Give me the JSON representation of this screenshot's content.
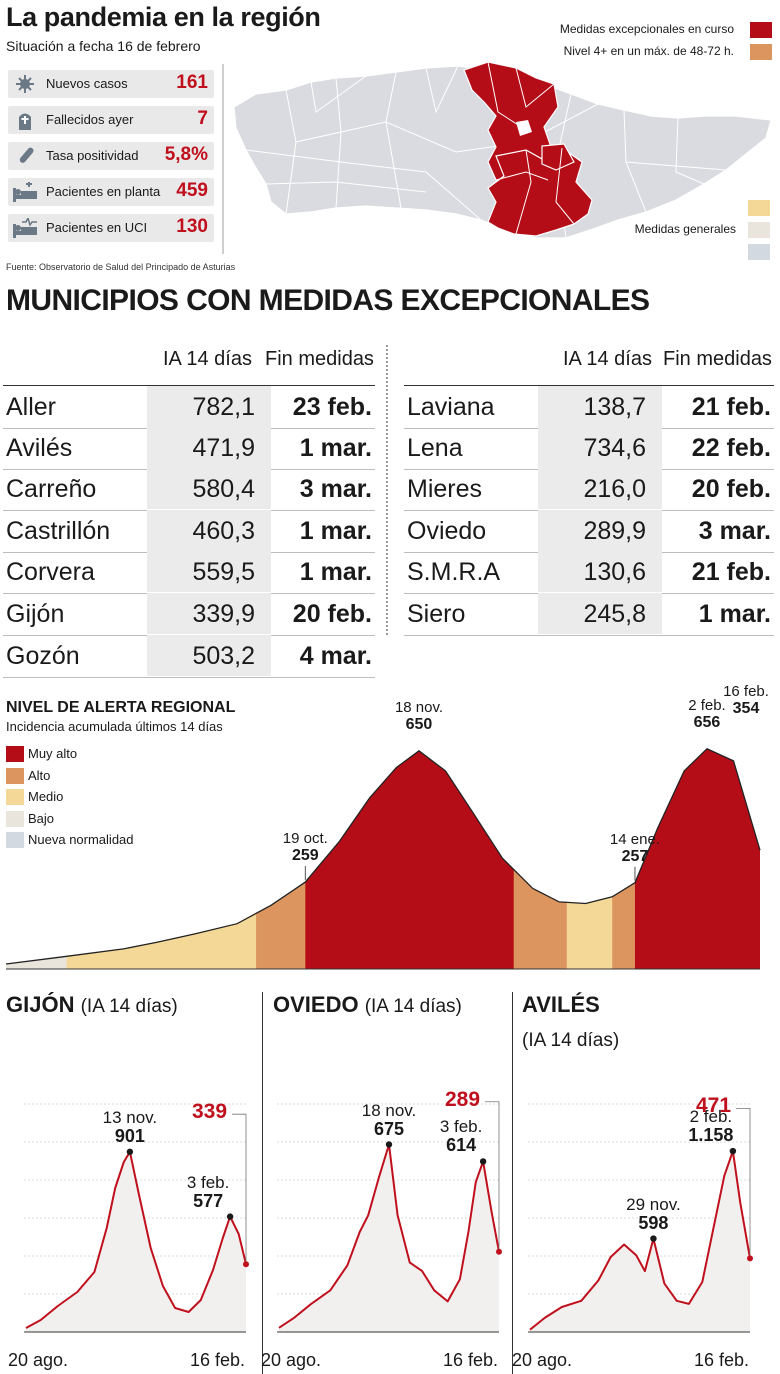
{
  "header": {
    "title": "La pandemia en la región",
    "subtitle": "Situación a fecha 16 de febrero"
  },
  "stats": [
    {
      "label": "Nuevos casos",
      "value": "161",
      "icon": "virus-icon"
    },
    {
      "label": "Fallecidos ayer",
      "value": "7",
      "icon": "tombstone-icon"
    },
    {
      "label": "Tasa positividad",
      "value": "5,8%",
      "icon": "test-tube-icon"
    },
    {
      "label": "Pacientes en planta",
      "value": "459",
      "icon": "hospital-bed-icon"
    },
    {
      "label": "Pacientes en UCI",
      "value": "130",
      "icon": "icu-bed-icon"
    }
  ],
  "source": "Fuente: Observatorio de Salud del Principado de Asturias",
  "map_legend": {
    "excepcionales": "Medidas excepcionales en curso",
    "nivel4": "Nivel 4+ en un máx. de 48-72 h.",
    "generales": "Medidas generales",
    "colors": {
      "excepcionales": "#b50d17",
      "nivel4": "#dc955f",
      "medio": "#f4d898",
      "bajo": "#e9e5dc",
      "normal": "#d3d9e1",
      "map": "#d9dbe0"
    }
  },
  "table": {
    "title": "MUNICIPIOS CON MEDIDAS EXCEPCIONALES",
    "col_ia": "IA 14 días",
    "col_fin": "Fin medidas",
    "left": [
      {
        "municipio": "Aller",
        "ia": "782,1",
        "fin": "23 feb."
      },
      {
        "municipio": "Avilés",
        "ia": "471,9",
        "fin": "1 mar."
      },
      {
        "municipio": "Carreño",
        "ia": "580,4",
        "fin": "3 mar."
      },
      {
        "municipio": "Castrillón",
        "ia": "460,3",
        "fin": "1 mar."
      },
      {
        "municipio": "Corvera",
        "ia": "559,5",
        "fin": "1 mar."
      },
      {
        "municipio": "Gijón",
        "ia": "339,9",
        "fin": "20 feb."
      },
      {
        "municipio": "Gozón",
        "ia": "503,2",
        "fin": "4 mar."
      }
    ],
    "right": [
      {
        "municipio": "Laviana",
        "ia": "138,7",
        "fin": "21 feb."
      },
      {
        "municipio": "Lena",
        "ia": "734,6",
        "fin": "22 feb."
      },
      {
        "municipio": "Mieres",
        "ia": "216,0",
        "fin": "20 feb."
      },
      {
        "municipio": "Oviedo",
        "ia": "289,9",
        "fin": "3 mar."
      },
      {
        "municipio": "S.M.R.A",
        "ia": "130,6",
        "fin": "21 feb."
      },
      {
        "municipio": "Siero",
        "ia": "245,8",
        "fin": "1 mar."
      }
    ]
  },
  "chart_data": [
    {
      "type": "area",
      "title": "NIVEL DE ALERTA REGIONAL",
      "subtitle": "Incidencia acumulada últimos 14 días",
      "legend": [
        {
          "name": "Muy alto",
          "color": "#b50d17"
        },
        {
          "name": "Alto",
          "color": "#dc955f"
        },
        {
          "name": "Medio",
          "color": "#f4d898"
        },
        {
          "name": "Bajo",
          "color": "#e9e5dc"
        },
        {
          "name": "Nueva normalidad",
          "color": "#d3d9e1"
        }
      ],
      "x": [
        "2020-08-01",
        "2020-08-15",
        "2020-09-01",
        "2020-09-10",
        "2020-09-20",
        "2020-10-01",
        "2020-10-10",
        "2020-10-19",
        "2020-10-28",
        "2020-11-05",
        "2020-11-12",
        "2020-11-18",
        "2020-11-25",
        "2020-12-02",
        "2020-12-10",
        "2020-12-18",
        "2020-12-25",
        "2021-01-01",
        "2021-01-08",
        "2021-01-14",
        "2021-01-20",
        "2021-01-27",
        "2021-02-02",
        "2021-02-09",
        "2021-02-16"
      ],
      "values": [
        15,
        35,
        60,
        80,
        105,
        135,
        190,
        259,
        380,
        510,
        600,
        650,
        590,
        470,
        330,
        240,
        200,
        195,
        215,
        257,
        420,
        590,
        656,
        620,
        354
      ],
      "bands": [
        {
          "level": "Bajo",
          "from": "2020-08-01",
          "to": "2020-08-17"
        },
        {
          "level": "Medio",
          "from": "2020-08-17",
          "to": "2020-10-06"
        },
        {
          "level": "Alto",
          "from": "2020-10-06",
          "to": "2020-10-19"
        },
        {
          "level": "Muy alto",
          "from": "2020-10-19",
          "to": "2020-12-13"
        },
        {
          "level": "Alto",
          "from": "2020-12-13",
          "to": "2020-12-27"
        },
        {
          "level": "Medio",
          "from": "2020-12-27",
          "to": "2021-01-08"
        },
        {
          "level": "Alto",
          "from": "2021-01-08",
          "to": "2021-01-14"
        },
        {
          "level": "Muy alto",
          "from": "2021-01-14",
          "to": "2021-02-16"
        }
      ],
      "annotations": [
        {
          "date": "19 oct.",
          "value": "259"
        },
        {
          "date": "18 nov.",
          "value": "650"
        },
        {
          "date": "14 ene.",
          "value": "257"
        },
        {
          "date": "2 feb.",
          "value": "656"
        },
        {
          "date": "16 feb.",
          "value": "354"
        }
      ]
    },
    {
      "type": "line",
      "title": "GIJÓN",
      "subtitle": "(IA 14 días)",
      "xlabel_start": "20 ago.",
      "xlabel_end": "16 feb.",
      "ylim": [
        0,
        1250
      ],
      "x": [
        "2020-08-20",
        "2020-09-01",
        "2020-09-15",
        "2020-10-01",
        "2020-10-15",
        "2020-10-25",
        "2020-11-01",
        "2020-11-08",
        "2020-11-13",
        "2020-11-20",
        "2020-11-30",
        "2020-12-10",
        "2020-12-20",
        "2020-12-31",
        "2021-01-10",
        "2021-01-20",
        "2021-01-28",
        "2021-02-03",
        "2021-02-10",
        "2021-02-16"
      ],
      "values": [
        20,
        60,
        130,
        200,
        300,
        520,
        720,
        850,
        901,
        700,
        420,
        230,
        120,
        100,
        160,
        310,
        470,
        577,
        490,
        339
      ],
      "peaks": [
        {
          "date": "13 nov.",
          "value": "901"
        },
        {
          "date": "3 feb.",
          "value": "577"
        }
      ],
      "last": "339"
    },
    {
      "type": "line",
      "title": "OVIEDO",
      "subtitle": "(IA 14 días)",
      "xlabel_start": "20 ago.",
      "xlabel_end": "16 feb.",
      "ylim": [
        0,
        900
      ],
      "x": [
        "2020-08-20",
        "2020-09-01",
        "2020-09-15",
        "2020-10-01",
        "2020-10-15",
        "2020-10-25",
        "2020-11-01",
        "2020-11-10",
        "2020-11-18",
        "2020-11-25",
        "2020-12-05",
        "2020-12-15",
        "2020-12-25",
        "2021-01-05",
        "2021-01-15",
        "2021-01-22",
        "2021-01-28",
        "2021-02-03",
        "2021-02-10",
        "2021-02-16"
      ],
      "values": [
        15,
        50,
        100,
        150,
        240,
        360,
        420,
        560,
        675,
        420,
        250,
        220,
        150,
        110,
        190,
        360,
        540,
        614,
        430,
        289
      ],
      "peaks": [
        {
          "date": "18 nov.",
          "value": "675"
        },
        {
          "date": "3 feb.",
          "value": "614"
        }
      ],
      "last": "289"
    },
    {
      "type": "line",
      "title": "AVILÉS",
      "subtitle": "(IA 14 días)",
      "xlabel_start": "20 ago.",
      "xlabel_end": "16 feb.",
      "ylim": [
        0,
        1600
      ],
      "x": [
        "2020-08-20",
        "2020-09-01",
        "2020-09-15",
        "2020-10-01",
        "2020-10-15",
        "2020-10-25",
        "2020-11-05",
        "2020-11-15",
        "2020-11-22",
        "2020-11-29",
        "2020-12-08",
        "2020-12-18",
        "2020-12-28",
        "2021-01-08",
        "2021-01-18",
        "2021-01-26",
        "2021-02-02",
        "2021-02-08",
        "2021-02-16"
      ],
      "values": [
        15,
        90,
        160,
        200,
        330,
        480,
        560,
        490,
        390,
        598,
        310,
        200,
        180,
        320,
        700,
        1000,
        1158,
        830,
        471
      ],
      "peaks": [
        {
          "date": "29 nov.",
          "value": "598"
        },
        {
          "date": "2 feb.",
          "value": "1.158"
        }
      ],
      "last": "471"
    }
  ]
}
